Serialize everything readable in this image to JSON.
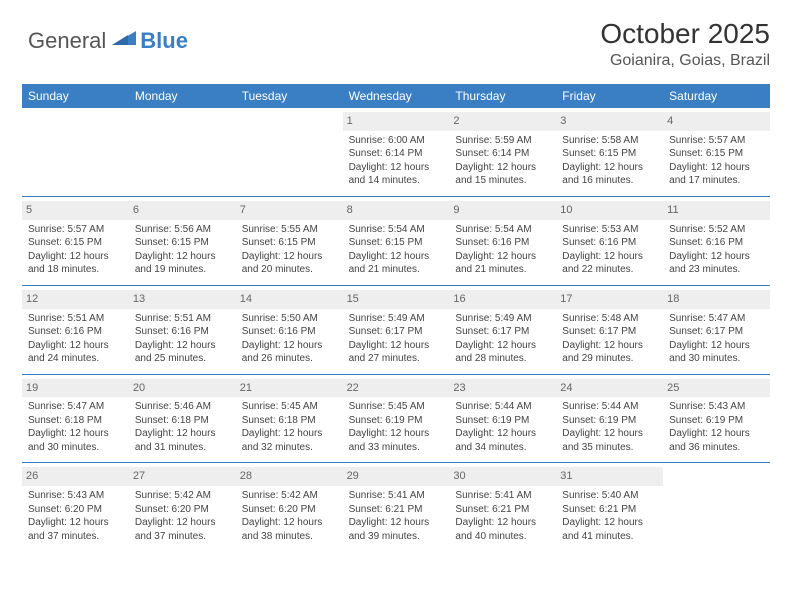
{
  "logo": {
    "general": "General",
    "blue": "Blue"
  },
  "title": "October 2025",
  "location": "Goianira, Goias, Brazil",
  "colors": {
    "header_bg": "#3a7fc4",
    "daynum_bg": "#eeeeee",
    "border": "#3a7fc4",
    "text": "#444444"
  },
  "weekdays": [
    "Sunday",
    "Monday",
    "Tuesday",
    "Wednesday",
    "Thursday",
    "Friday",
    "Saturday"
  ],
  "weeks": [
    [
      null,
      null,
      null,
      {
        "d": "1",
        "sr": "Sunrise: 6:00 AM",
        "ss": "Sunset: 6:14 PM",
        "dl1": "Daylight: 12 hours",
        "dl2": "and 14 minutes."
      },
      {
        "d": "2",
        "sr": "Sunrise: 5:59 AM",
        "ss": "Sunset: 6:14 PM",
        "dl1": "Daylight: 12 hours",
        "dl2": "and 15 minutes."
      },
      {
        "d": "3",
        "sr": "Sunrise: 5:58 AM",
        "ss": "Sunset: 6:15 PM",
        "dl1": "Daylight: 12 hours",
        "dl2": "and 16 minutes."
      },
      {
        "d": "4",
        "sr": "Sunrise: 5:57 AM",
        "ss": "Sunset: 6:15 PM",
        "dl1": "Daylight: 12 hours",
        "dl2": "and 17 minutes."
      }
    ],
    [
      {
        "d": "5",
        "sr": "Sunrise: 5:57 AM",
        "ss": "Sunset: 6:15 PM",
        "dl1": "Daylight: 12 hours",
        "dl2": "and 18 minutes."
      },
      {
        "d": "6",
        "sr": "Sunrise: 5:56 AM",
        "ss": "Sunset: 6:15 PM",
        "dl1": "Daylight: 12 hours",
        "dl2": "and 19 minutes."
      },
      {
        "d": "7",
        "sr": "Sunrise: 5:55 AM",
        "ss": "Sunset: 6:15 PM",
        "dl1": "Daylight: 12 hours",
        "dl2": "and 20 minutes."
      },
      {
        "d": "8",
        "sr": "Sunrise: 5:54 AM",
        "ss": "Sunset: 6:15 PM",
        "dl1": "Daylight: 12 hours",
        "dl2": "and 21 minutes."
      },
      {
        "d": "9",
        "sr": "Sunrise: 5:54 AM",
        "ss": "Sunset: 6:16 PM",
        "dl1": "Daylight: 12 hours",
        "dl2": "and 21 minutes."
      },
      {
        "d": "10",
        "sr": "Sunrise: 5:53 AM",
        "ss": "Sunset: 6:16 PM",
        "dl1": "Daylight: 12 hours",
        "dl2": "and 22 minutes."
      },
      {
        "d": "11",
        "sr": "Sunrise: 5:52 AM",
        "ss": "Sunset: 6:16 PM",
        "dl1": "Daylight: 12 hours",
        "dl2": "and 23 minutes."
      }
    ],
    [
      {
        "d": "12",
        "sr": "Sunrise: 5:51 AM",
        "ss": "Sunset: 6:16 PM",
        "dl1": "Daylight: 12 hours",
        "dl2": "and 24 minutes."
      },
      {
        "d": "13",
        "sr": "Sunrise: 5:51 AM",
        "ss": "Sunset: 6:16 PM",
        "dl1": "Daylight: 12 hours",
        "dl2": "and 25 minutes."
      },
      {
        "d": "14",
        "sr": "Sunrise: 5:50 AM",
        "ss": "Sunset: 6:16 PM",
        "dl1": "Daylight: 12 hours",
        "dl2": "and 26 minutes."
      },
      {
        "d": "15",
        "sr": "Sunrise: 5:49 AM",
        "ss": "Sunset: 6:17 PM",
        "dl1": "Daylight: 12 hours",
        "dl2": "and 27 minutes."
      },
      {
        "d": "16",
        "sr": "Sunrise: 5:49 AM",
        "ss": "Sunset: 6:17 PM",
        "dl1": "Daylight: 12 hours",
        "dl2": "and 28 minutes."
      },
      {
        "d": "17",
        "sr": "Sunrise: 5:48 AM",
        "ss": "Sunset: 6:17 PM",
        "dl1": "Daylight: 12 hours",
        "dl2": "and 29 minutes."
      },
      {
        "d": "18",
        "sr": "Sunrise: 5:47 AM",
        "ss": "Sunset: 6:17 PM",
        "dl1": "Daylight: 12 hours",
        "dl2": "and 30 minutes."
      }
    ],
    [
      {
        "d": "19",
        "sr": "Sunrise: 5:47 AM",
        "ss": "Sunset: 6:18 PM",
        "dl1": "Daylight: 12 hours",
        "dl2": "and 30 minutes."
      },
      {
        "d": "20",
        "sr": "Sunrise: 5:46 AM",
        "ss": "Sunset: 6:18 PM",
        "dl1": "Daylight: 12 hours",
        "dl2": "and 31 minutes."
      },
      {
        "d": "21",
        "sr": "Sunrise: 5:45 AM",
        "ss": "Sunset: 6:18 PM",
        "dl1": "Daylight: 12 hours",
        "dl2": "and 32 minutes."
      },
      {
        "d": "22",
        "sr": "Sunrise: 5:45 AM",
        "ss": "Sunset: 6:19 PM",
        "dl1": "Daylight: 12 hours",
        "dl2": "and 33 minutes."
      },
      {
        "d": "23",
        "sr": "Sunrise: 5:44 AM",
        "ss": "Sunset: 6:19 PM",
        "dl1": "Daylight: 12 hours",
        "dl2": "and 34 minutes."
      },
      {
        "d": "24",
        "sr": "Sunrise: 5:44 AM",
        "ss": "Sunset: 6:19 PM",
        "dl1": "Daylight: 12 hours",
        "dl2": "and 35 minutes."
      },
      {
        "d": "25",
        "sr": "Sunrise: 5:43 AM",
        "ss": "Sunset: 6:19 PM",
        "dl1": "Daylight: 12 hours",
        "dl2": "and 36 minutes."
      }
    ],
    [
      {
        "d": "26",
        "sr": "Sunrise: 5:43 AM",
        "ss": "Sunset: 6:20 PM",
        "dl1": "Daylight: 12 hours",
        "dl2": "and 37 minutes."
      },
      {
        "d": "27",
        "sr": "Sunrise: 5:42 AM",
        "ss": "Sunset: 6:20 PM",
        "dl1": "Daylight: 12 hours",
        "dl2": "and 37 minutes."
      },
      {
        "d": "28",
        "sr": "Sunrise: 5:42 AM",
        "ss": "Sunset: 6:20 PM",
        "dl1": "Daylight: 12 hours",
        "dl2": "and 38 minutes."
      },
      {
        "d": "29",
        "sr": "Sunrise: 5:41 AM",
        "ss": "Sunset: 6:21 PM",
        "dl1": "Daylight: 12 hours",
        "dl2": "and 39 minutes."
      },
      {
        "d": "30",
        "sr": "Sunrise: 5:41 AM",
        "ss": "Sunset: 6:21 PM",
        "dl1": "Daylight: 12 hours",
        "dl2": "and 40 minutes."
      },
      {
        "d": "31",
        "sr": "Sunrise: 5:40 AM",
        "ss": "Sunset: 6:21 PM",
        "dl1": "Daylight: 12 hours",
        "dl2": "and 41 minutes."
      },
      null
    ]
  ]
}
